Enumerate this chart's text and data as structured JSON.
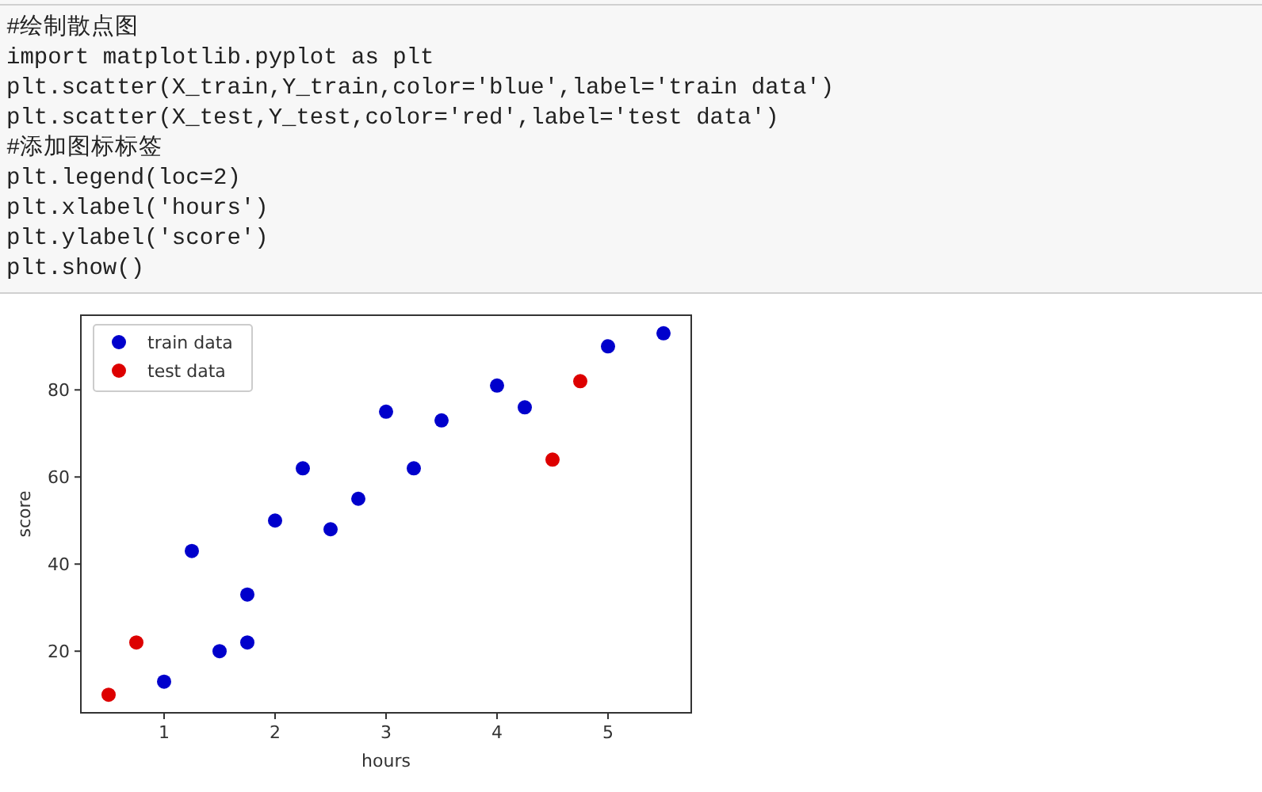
{
  "chart_data": {
    "type": "scatter",
    "xlabel": "hours",
    "ylabel": "score",
    "xlim": [
      0.25,
      5.75
    ],
    "ylim": [
      5.85,
      97.15
    ],
    "xticks": [
      1,
      2,
      3,
      4,
      5
    ],
    "yticks": [
      20,
      40,
      60,
      80
    ],
    "legend": "top left",
    "marker": "circle",
    "grid": false,
    "annotations": [
      "#绘制散点图",
      "import matplotlib.pyplot as plt",
      "plt.scatter(X_train,Y_train,color='blue',label='train data')",
      "plt.scatter(X_test,Y_test,color='red',label='test data')",
      "#添加图标标签",
      "plt.legend(loc=2)",
      "plt.xlabel('hours')",
      "plt.ylabel('score')",
      "plt.show()"
    ],
    "series": [
      {
        "name": "train data",
        "color": "#0000cc",
        "x": [
          1,
          1.25,
          1.5,
          1.75,
          1.75,
          2,
          2.25,
          2.5,
          2.75,
          3,
          3.25,
          3.5,
          4,
          4.25,
          5,
          5.5
        ],
        "values": [
          13,
          43,
          20,
          22,
          33,
          50,
          62,
          48,
          55,
          75,
          62,
          73,
          81,
          76,
          90,
          93
        ]
      },
      {
        "name": "test data",
        "color": "#dd0000",
        "x": [
          0.5,
          0.75,
          4.5,
          4.75
        ],
        "values": [
          10,
          22,
          64,
          82
        ]
      }
    ]
  }
}
